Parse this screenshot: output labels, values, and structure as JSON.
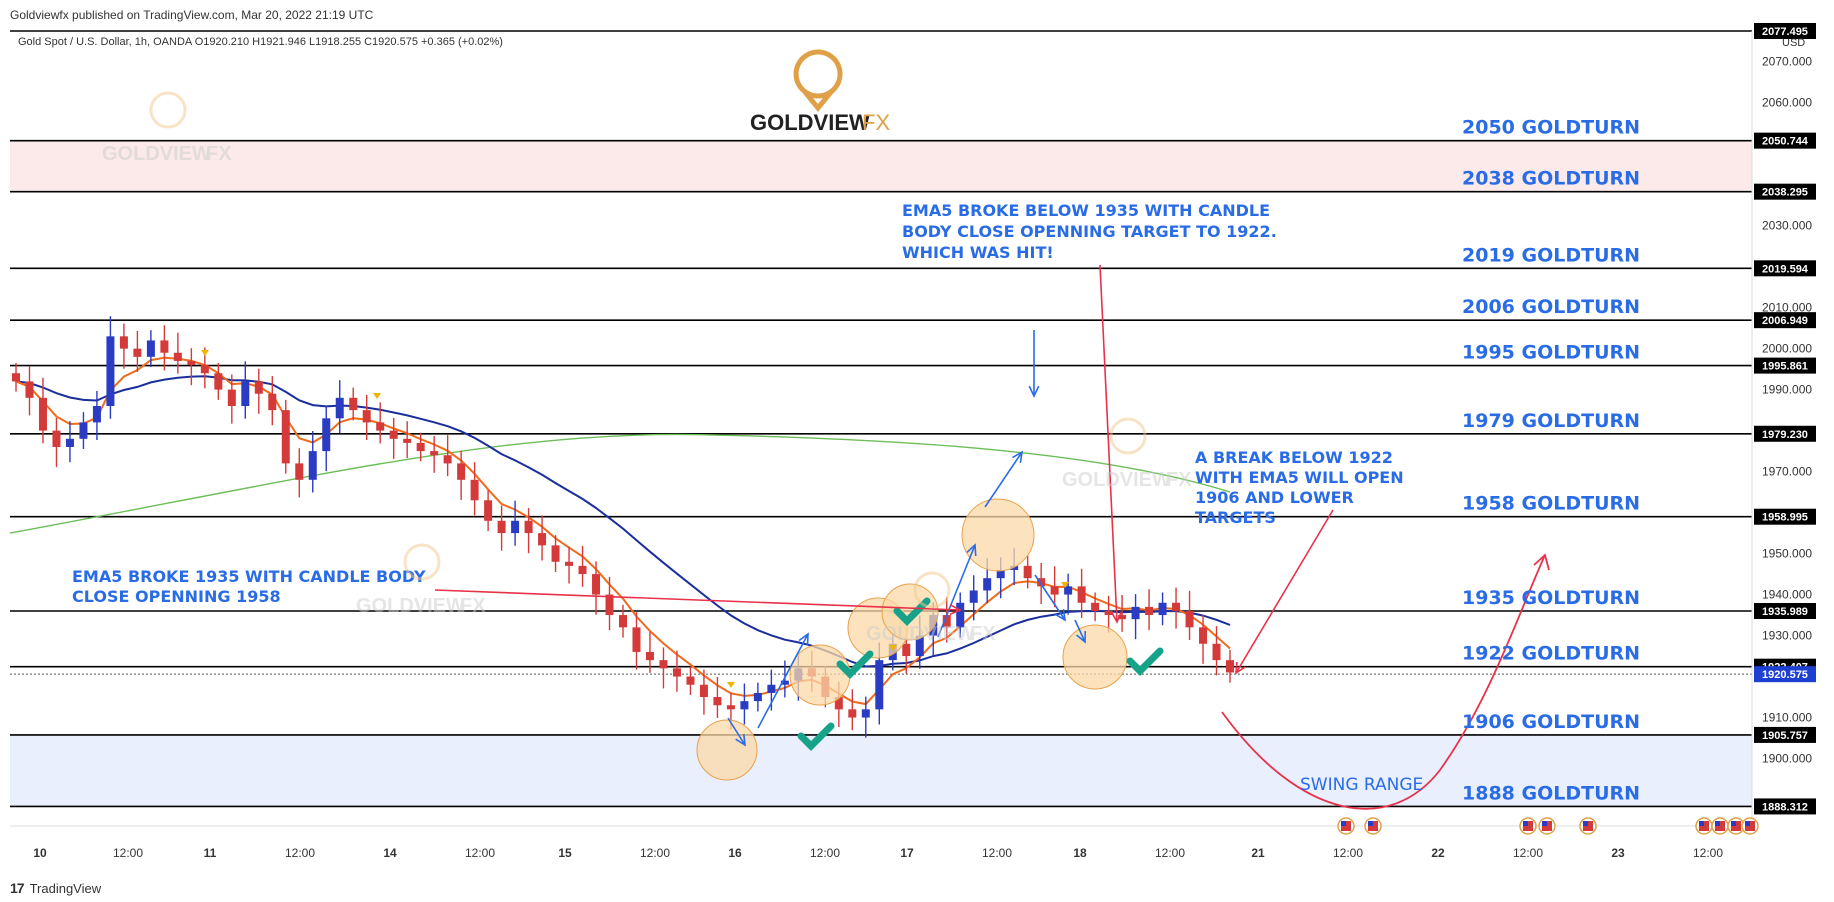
{
  "header": {
    "published_text": "Goldviewfx published on TradingView.com, Mar 20, 2022 21:19 UTC",
    "symbol_line": "Gold Spot / U.S. Dollar, 1h, OANDA  O1920.210  H1921.946  L1918.255  C1920.575  +0.365 (+0.02%)",
    "currency": "USD"
  },
  "logo": {
    "name": "GOLDVIEW",
    "suffix": "FX",
    "brand_color": "#e0a047"
  },
  "footer": {
    "brand": "TradingView",
    "logo_glyph": "17"
  },
  "colors": {
    "level_line": "#000000",
    "ema5": "#f06a1c",
    "ema_blue": "#1a2e9c",
    "ema_green": "#6cbe58",
    "candle_up": "#2a3bc4",
    "candle_down": "#d43a3a",
    "annotation_blue": "#2a6ce6",
    "red_arrow": "#e8324a",
    "price_tag_bg": "#000000",
    "current_price_bg": "#1e40d2",
    "upper_zone": "#fce9ea",
    "lower_zone": "#eaeffd",
    "circle_fill": "#fbd9a8",
    "check_green": "#17a38a"
  },
  "chart_data": {
    "type": "candlestick",
    "instrument": "Gold Spot / U.S. Dollar",
    "timeframe": "1h",
    "ylim": [
      1885,
      2077.495
    ],
    "y_ticks": [
      1900,
      1910,
      1920,
      1930,
      1940,
      1950,
      1960,
      1970,
      1980,
      1990,
      2000,
      2010,
      2020,
      2030,
      2040,
      2050,
      2060,
      2070
    ],
    "y_tick_labels": [
      "1900.000",
      "1910.000",
      "1920.000",
      "1930.000",
      "1940.000",
      "1950.000",
      "1960.000",
      "1970.000",
      "1980.000",
      "1990.000",
      "2000.000",
      "2010.000",
      "2020.000",
      "2030.000",
      "2040.000",
      "2050.000",
      "2060.000",
      "2070.000"
    ],
    "x_tick_labels": [
      "10",
      "12:00",
      "11",
      "12:00",
      "14",
      "12:00",
      "15",
      "12:00",
      "16",
      "12:00",
      "17",
      "12:00",
      "18",
      "12:00",
      "21",
      "12:00",
      "22",
      "12:00",
      "23",
      "12:00"
    ],
    "levels": [
      {
        "value": 2077.495,
        "tag": "2077.495",
        "label": ""
      },
      {
        "value": 2050.744,
        "tag": "2050.744",
        "label": "2050 GOLDTURN"
      },
      {
        "value": 2038.295,
        "tag": "2038.295",
        "label": "2038 GOLDTURN"
      },
      {
        "value": 2019.594,
        "tag": "2019.594",
        "label": "2019 GOLDTURN"
      },
      {
        "value": 2006.949,
        "tag": "2006.949",
        "label": "2006 GOLDTURN"
      },
      {
        "value": 1995.861,
        "tag": "1995.861",
        "label": "1995 GOLDTURN"
      },
      {
        "value": 1979.23,
        "tag": "1979.230",
        "label": "1979 GOLDTURN"
      },
      {
        "value": 1958.995,
        "tag": "1958.995",
        "label": "1958 GOLDTURN"
      },
      {
        "value": 1935.989,
        "tag": "1935.989",
        "label": "1935 GOLDTURN"
      },
      {
        "value": 1922.407,
        "tag": "1922.407",
        "label": "1922 GOLDTURN"
      },
      {
        "value": 1905.757,
        "tag": "1905.757",
        "label": "1906 GOLDTURN"
      },
      {
        "value": 1888.312,
        "tag": "1888.312",
        "label": "1888 GOLDTURN"
      }
    ],
    "current_price": {
      "value": 1920.575,
      "tag": "1920.575"
    },
    "close_series": [
      1992,
      1988,
      1980,
      1976,
      1978,
      1982,
      1986,
      2003,
      2000,
      1998,
      2002,
      1999,
      1997,
      1996,
      1994,
      1990,
      1986,
      1992,
      1989,
      1985,
      1972,
      1968,
      1975,
      1983,
      1988,
      1985,
      1982,
      1980,
      1978,
      1977,
      1975,
      1974,
      1972,
      1968,
      1963,
      1958,
      1955,
      1958,
      1955,
      1952,
      1948,
      1947,
      1945,
      1940,
      1935,
      1932,
      1926,
      1924,
      1922,
      1920,
      1918,
      1915,
      1913,
      1912,
      1914,
      1916,
      1918,
      1919,
      1922,
      1920,
      1915,
      1912,
      1910,
      1912,
      1924,
      1928,
      1925,
      1930,
      1935,
      1932,
      1938,
      1941,
      1944,
      1946,
      1947,
      1944,
      1942,
      1940,
      1942,
      1938,
      1936,
      1935,
      1934,
      1937,
      1935,
      1938,
      1936,
      1932,
      1928,
      1924,
      1921
    ],
    "annotations": [
      "EMA5 BROKE  BELOW 1935 WITH CANDLE",
      "BODY CLOSE OPENNING TARGET TO 1922.",
      "WHICH WAS HIT!",
      "EMA5 BROKE 1935 WITH CANDLE BODY",
      "CLOSE OPENNING 1958",
      "A BREAK BELOW 1922",
      "WITH EMA5 WILL OPEN",
      "1906 AND LOWER",
      "TARGETS",
      "SWING RANGE"
    ]
  }
}
